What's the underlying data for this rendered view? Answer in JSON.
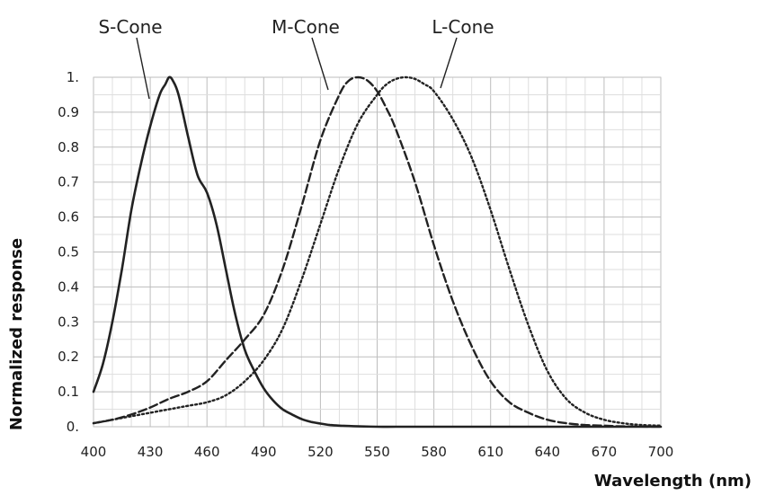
{
  "chart_data": {
    "type": "line",
    "title": "",
    "xlabel": "Wavelength (nm)",
    "ylabel": "Normalized response",
    "xlim": [
      400,
      700
    ],
    "ylim": [
      0,
      1
    ],
    "grid": true,
    "minor_grid": true,
    "x_ticks": [
      "400",
      "430",
      "460",
      "490",
      "520",
      "550",
      "580",
      "610",
      "640",
      "670",
      "700"
    ],
    "y_ticks": [
      "0.",
      "0.1",
      "0.2",
      "0.3",
      "0.4",
      "0.5",
      "0.6",
      "0.7",
      "0.8",
      "0.9",
      "1."
    ],
    "series": [
      {
        "name": "S-Cone",
        "style": "solid",
        "x": [
          400,
          405,
          410,
          415,
          420,
          425,
          430,
          435,
          438,
          440,
          442,
          445,
          450,
          455,
          460,
          465,
          470,
          475,
          480,
          485,
          490,
          495,
          500,
          505,
          510,
          515,
          520,
          525,
          530,
          535,
          540,
          550,
          560,
          580,
          600,
          650,
          700
        ],
        "y": [
          0.1,
          0.18,
          0.3,
          0.45,
          0.62,
          0.75,
          0.86,
          0.95,
          0.98,
          1.0,
          0.99,
          0.95,
          0.83,
          0.72,
          0.67,
          0.58,
          0.45,
          0.32,
          0.22,
          0.16,
          0.11,
          0.075,
          0.05,
          0.035,
          0.022,
          0.014,
          0.009,
          0.005,
          0.003,
          0.002,
          0.001,
          0.0,
          0.0,
          0.0,
          0.0,
          0.0,
          0.0
        ]
      },
      {
        "name": "M-Cone",
        "style": "dashed",
        "x": [
          400,
          410,
          420,
          430,
          440,
          450,
          460,
          470,
          480,
          490,
          500,
          510,
          520,
          530,
          535,
          540,
          545,
          550,
          555,
          560,
          570,
          580,
          590,
          600,
          610,
          620,
          630,
          640,
          650,
          660,
          670,
          680,
          700
        ],
        "y": [
          0.01,
          0.02,
          0.035,
          0.055,
          0.08,
          0.1,
          0.13,
          0.19,
          0.25,
          0.32,
          0.45,
          0.63,
          0.82,
          0.95,
          0.99,
          1.0,
          0.99,
          0.96,
          0.91,
          0.85,
          0.7,
          0.52,
          0.36,
          0.23,
          0.13,
          0.07,
          0.04,
          0.02,
          0.01,
          0.005,
          0.003,
          0.001,
          0.0
        ]
      },
      {
        "name": "L-Cone",
        "style": "dotted",
        "x": [
          400,
          420,
          440,
          450,
          460,
          470,
          480,
          490,
          500,
          510,
          520,
          530,
          540,
          550,
          555,
          560,
          565,
          570,
          575,
          580,
          590,
          600,
          610,
          620,
          630,
          640,
          650,
          660,
          670,
          680,
          690,
          700
        ],
        "y": [
          0.01,
          0.03,
          0.05,
          0.06,
          0.07,
          0.09,
          0.13,
          0.19,
          0.28,
          0.42,
          0.58,
          0.74,
          0.87,
          0.95,
          0.98,
          0.995,
          1.0,
          0.995,
          0.98,
          0.96,
          0.88,
          0.77,
          0.62,
          0.45,
          0.29,
          0.16,
          0.08,
          0.04,
          0.02,
          0.01,
          0.005,
          0.003
        ]
      }
    ]
  }
}
